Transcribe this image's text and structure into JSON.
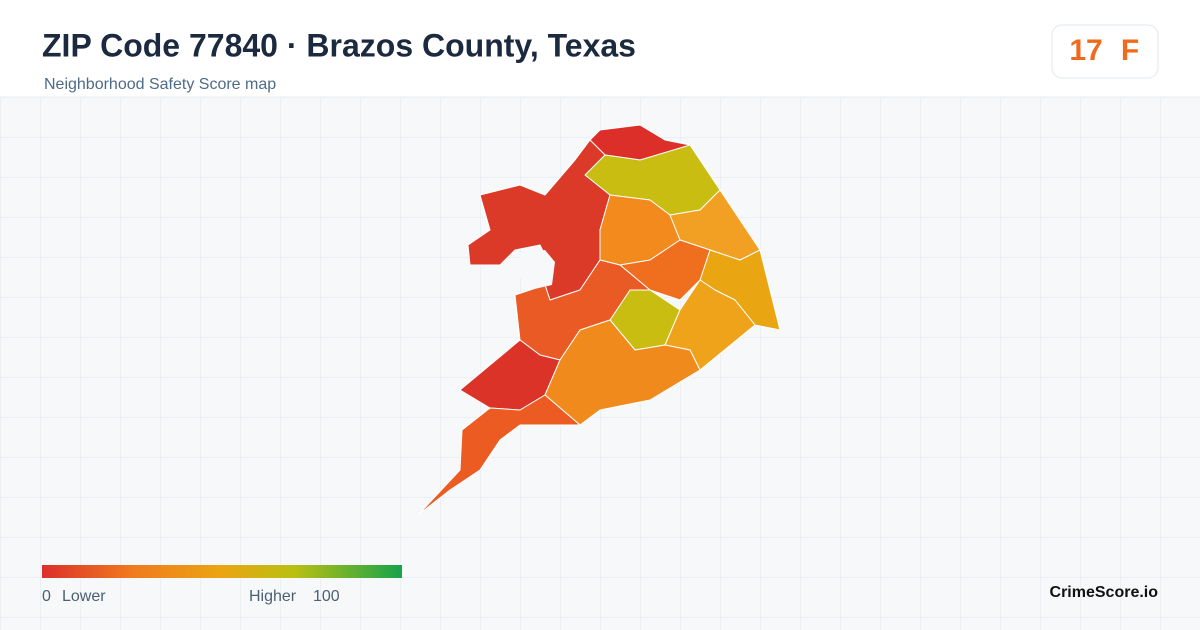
{
  "header": {
    "title": "ZIP Code 77840 · Brazos County, Texas",
    "subtitle": "Neighborhood Safety Score map"
  },
  "score": {
    "value": 17,
    "grade": "F"
  },
  "legend": {
    "min": 0,
    "min_label": "Lower",
    "max_label": "Higher",
    "max": 100
  },
  "brand": "CrimeScore.io"
}
